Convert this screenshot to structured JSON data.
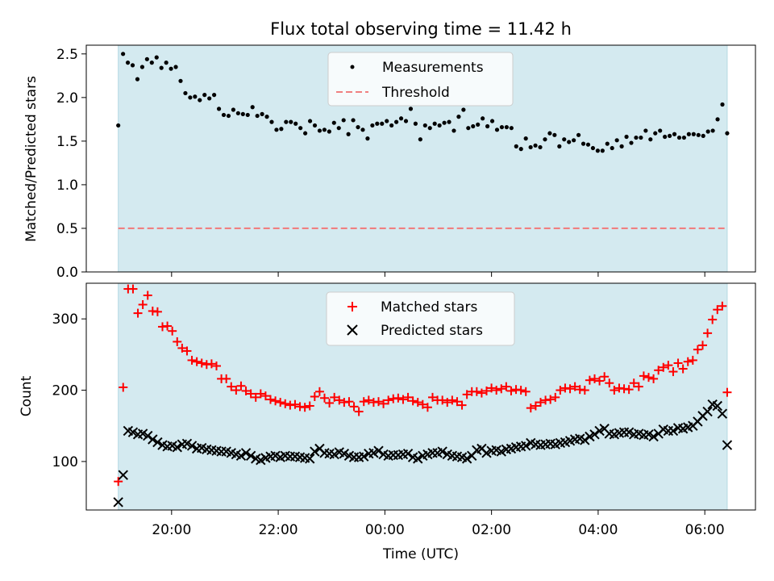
{
  "figure": {
    "title": "Flux total observing time = 11.42 h",
    "xlabel": "Time (UTC)"
  },
  "colors": {
    "observing_band": "#d4eaf0",
    "observing_band_edge": "#b5d8e3",
    "measurements": "#000000",
    "threshold": "#f08080",
    "matched": "#ff0000",
    "predicted": "#000000"
  },
  "chart_data": [
    {
      "type": "scatter",
      "ylabel": "Matched/Predicted stars",
      "xlim_hours": [
        18.4,
        30.95
      ],
      "ylim": [
        0,
        2.6
      ],
      "observing_window_hours": [
        19.0,
        30.42
      ],
      "yticks": [
        "0.0",
        "0.5",
        "1.0",
        "1.5",
        "2.0",
        "2.5"
      ],
      "ytick_values": [
        0,
        0.5,
        1.0,
        1.5,
        2.0,
        2.5
      ],
      "legend": {
        "placement": "upper center",
        "entries": [
          "Measurements",
          "Threshold"
        ]
      },
      "threshold": {
        "name": "Threshold",
        "value": 0.5
      },
      "series": [
        {
          "name": "Measurements",
          "marker": "dot",
          "values": [
            1.68,
            2.5,
            2.4,
            2.37,
            2.21,
            2.35,
            2.44,
            2.4,
            2.46,
            2.34,
            2.4,
            2.33,
            2.35,
            2.19,
            2.05,
            2.0,
            2.01,
            1.97,
            2.03,
            1.99,
            2.03,
            1.87,
            1.8,
            1.79,
            1.86,
            1.82,
            1.81,
            1.8,
            1.89,
            1.79,
            1.81,
            1.78,
            1.72,
            1.63,
            1.64,
            1.72,
            1.72,
            1.7,
            1.65,
            1.59,
            1.73,
            1.68,
            1.62,
            1.63,
            1.61,
            1.71,
            1.65,
            1.74,
            1.58,
            1.74,
            1.66,
            1.63,
            1.53,
            1.68,
            1.7,
            1.7,
            1.73,
            1.68,
            1.72,
            1.76,
            1.73,
            1.87,
            1.7,
            1.52,
            1.68,
            1.65,
            1.7,
            1.68,
            1.71,
            1.72,
            1.62,
            1.78,
            1.86,
            1.65,
            1.67,
            1.69,
            1.76,
            1.67,
            1.73,
            1.63,
            1.66,
            1.66,
            1.65,
            1.44,
            1.41,
            1.53,
            1.43,
            1.45,
            1.43,
            1.52,
            1.59,
            1.57,
            1.44,
            1.52,
            1.49,
            1.51,
            1.57,
            1.47,
            1.46,
            1.42,
            1.39,
            1.39,
            1.47,
            1.42,
            1.51,
            1.44,
            1.55,
            1.48,
            1.54,
            1.54,
            1.62,
            1.52,
            1.59,
            1.62,
            1.55,
            1.56,
            1.58,
            1.54,
            1.54,
            1.58,
            1.58,
            1.57,
            1.56,
            1.61,
            1.62,
            1.75,
            1.92,
            1.59
          ]
        }
      ]
    },
    {
      "type": "scatter",
      "ylabel": "Count",
      "xlim_hours": [
        18.4,
        30.95
      ],
      "ylim": [
        32,
        350
      ],
      "observing_window_hours": [
        19.0,
        30.42
      ],
      "yticks": [
        "100",
        "200",
        "300"
      ],
      "ytick_values": [
        100,
        200,
        300
      ],
      "xticks": [
        "20:00",
        "22:00",
        "00:00",
        "02:00",
        "04:00",
        "06:00"
      ],
      "xtick_hours": [
        20,
        22,
        24,
        26,
        28,
        30
      ],
      "legend": {
        "placement": "upper center",
        "entries": [
          "Matched stars",
          "Predicted stars"
        ]
      },
      "series": [
        {
          "name": "Matched stars",
          "marker": "plus",
          "values": [
            72,
            204,
            342,
            342,
            308,
            320,
            333,
            311,
            310,
            289,
            290,
            283,
            268,
            259,
            255,
            242,
            240,
            238,
            236,
            237,
            234,
            216,
            216,
            205,
            200,
            206,
            199,
            195,
            190,
            195,
            192,
            187,
            185,
            183,
            181,
            179,
            180,
            177,
            176,
            178,
            191,
            198,
            189,
            182,
            190,
            186,
            183,
            184,
            177,
            170,
            184,
            186,
            183,
            184,
            181,
            186,
            188,
            189,
            187,
            190,
            185,
            183,
            180,
            176,
            190,
            186,
            186,
            183,
            186,
            184,
            179,
            194,
            198,
            198,
            196,
            199,
            203,
            200,
            202,
            205,
            199,
            201,
            200,
            198,
            175,
            178,
            183,
            186,
            187,
            190,
            200,
            203,
            202,
            205,
            201,
            200,
            214,
            216,
            213,
            219,
            210,
            200,
            203,
            202,
            201,
            210,
            205,
            220,
            218,
            216,
            228,
            232,
            235,
            226,
            238,
            230,
            240,
            242,
            257,
            263,
            280,
            299,
            313,
            318,
            197
          ]
        },
        {
          "name": "Predicted stars",
          "marker": "x",
          "values": [
            43,
            81,
            143,
            141,
            138,
            139,
            136,
            131,
            127,
            123,
            121,
            122,
            120,
            124,
            125,
            122,
            118,
            119,
            117,
            116,
            115,
            114,
            114,
            112,
            110,
            108,
            112,
            108,
            104,
            102,
            105,
            107,
            108,
            106,
            108,
            107,
            107,
            106,
            105,
            104,
            114,
            118,
            112,
            111,
            110,
            113,
            111,
            108,
            106,
            106,
            107,
            111,
            112,
            115,
            110,
            108,
            109,
            109,
            110,
            111,
            106,
            104,
            108,
            110,
            112,
            112,
            114,
            110,
            108,
            107,
            106,
            104,
            108,
            116,
            118,
            112,
            115,
            116,
            114,
            117,
            118,
            120,
            121,
            122,
            126,
            124,
            123,
            124,
            125,
            124,
            126,
            127,
            129,
            131,
            132,
            130,
            135,
            138,
            143,
            146,
            139,
            138,
            140,
            141,
            141,
            138,
            139,
            137,
            138,
            135,
            139,
            145,
            143,
            143,
            147,
            146,
            148,
            150,
            156,
            164,
            170,
            180,
            178,
            167,
            123
          ]
        }
      ]
    }
  ]
}
